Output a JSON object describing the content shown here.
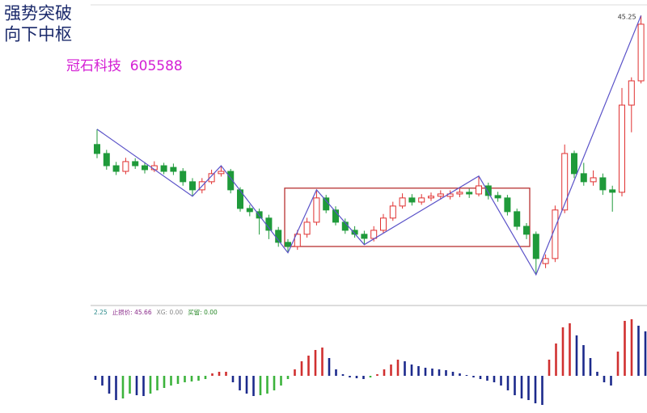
{
  "chart_data": [
    {
      "type": "candlestick",
      "annotations": [
        "强势突破",
        "向下中枢",
        "冠石科技  605588"
      ],
      "ylim": [
        28,
        46
      ],
      "up_color": "#e03030",
      "down_color": "#1f9a3a",
      "open": [
        36.8,
        36.21,
        35.41,
        35.04,
        35.68,
        35.41,
        35.15,
        35.41,
        35.3,
        35.04,
        34.36,
        33.83,
        34.36,
        34.89,
        35.04,
        33.83,
        32.61,
        32.4,
        31.98,
        31.18,
        30.39,
        30.12,
        30.92,
        31.71,
        33.3,
        32.51,
        31.71,
        31.18,
        30.92,
        30.65,
        31.18,
        31.98,
        32.77,
        33.3,
        33.03,
        33.3,
        33.41,
        33.4,
        33.56,
        33.67,
        33.56,
        34.09,
        33.46,
        33.3,
        32.4,
        31.44,
        30.92,
        29.0,
        29.33,
        32.51,
        36.21,
        34.89,
        34.36,
        34.62,
        33.83,
        33.67,
        39.38,
        40.97
      ],
      "high": [
        37.8,
        36.45,
        35.66,
        35.93,
        35.9,
        35.65,
        35.7,
        35.6,
        35.55,
        35.25,
        34.6,
        34.6,
        35.15,
        35.41,
        35.2,
        34.0,
        32.85,
        32.6,
        32.2,
        31.4,
        30.6,
        31.2,
        32.0,
        33.83,
        33.5,
        32.75,
        31.95,
        31.45,
        31.15,
        31.45,
        32.25,
        33.05,
        33.6,
        33.55,
        33.55,
        33.65,
        33.8,
        33.8,
        33.9,
        33.9,
        34.73,
        34.3,
        33.7,
        33.5,
        32.6,
        31.65,
        31.1,
        29.6,
        32.8,
        36.8,
        36.4,
        35.6,
        35.1,
        34.9,
        34.1,
        40.5,
        41.2,
        45.25
      ],
      "low": [
        35.9,
        35.15,
        34.8,
        34.85,
        35.2,
        34.9,
        35.0,
        34.85,
        34.8,
        34.1,
        33.41,
        33.6,
        34.2,
        34.7,
        33.6,
        32.4,
        32.1,
        30.9,
        30.6,
        30.1,
        29.71,
        29.9,
        30.7,
        31.5,
        32.3,
        31.5,
        30.95,
        30.7,
        30.24,
        30.45,
        31.0,
        31.8,
        32.6,
        32.8,
        32.85,
        33.1,
        33.2,
        33.2,
        33.35,
        33.3,
        33.4,
        33.2,
        33.05,
        32.15,
        31.2,
        30.6,
        28.27,
        28.7,
        29.1,
        32.3,
        34.6,
        34.1,
        34.1,
        33.5,
        32.4,
        33.4,
        37.6,
        40.8
      ],
      "close": [
        36.21,
        35.41,
        35.04,
        35.68,
        35.41,
        35.15,
        35.41,
        35.04,
        35.04,
        34.36,
        33.83,
        34.36,
        34.89,
        35.04,
        33.83,
        32.61,
        32.4,
        31.98,
        31.18,
        30.39,
        30.12,
        30.92,
        31.71,
        33.3,
        32.51,
        31.71,
        31.18,
        30.92,
        30.65,
        31.18,
        31.98,
        32.77,
        33.3,
        33.03,
        33.3,
        33.41,
        33.56,
        33.56,
        33.67,
        33.56,
        34.09,
        33.46,
        33.3,
        32.4,
        31.44,
        30.92,
        29.33,
        29.33,
        32.51,
        36.21,
        34.89,
        34.36,
        34.62,
        33.83,
        33.67,
        39.38,
        40.97,
        44.68
      ],
      "zigzag": {
        "color": "#5a52c8",
        "x": [
          0,
          10,
          13,
          20,
          23,
          28,
          40,
          46,
          57
        ],
        "values": [
          37.8,
          33.41,
          35.41,
          29.71,
          33.83,
          30.24,
          34.73,
          28.27,
          45.25
        ]
      },
      "pivot_zone": {
        "color": "#b83232",
        "start": 20,
        "end": 45,
        "low": 30.12,
        "high": 33.94
      }
    },
    {
      "type": "bar",
      "legend": [
        {
          "text": "2.25",
          "color": "#2a8a8a"
        },
        {
          "text": "止损价: 45.66",
          "color": "#8a2a8a"
        },
        {
          "text": "XG: 0.00",
          "color": "#888888"
        },
        {
          "text": "买留: 0.00",
          "color": "#2a8a2a"
        }
      ],
      "ylim": [
        -40,
        85
      ],
      "rise_color": "#d03030",
      "fall_color": "#1c2a8c",
      "recover_color": "#3cb33c",
      "values": [
        -5,
        -12,
        -22,
        -30,
        -28,
        -22,
        -24,
        -25,
        -22,
        -18,
        -15,
        -12,
        -10,
        -8,
        -7,
        -6,
        -4,
        3,
        5,
        5,
        -8,
        -18,
        -22,
        -25,
        -24,
        -22,
        -18,
        -12,
        -4,
        8,
        18,
        25,
        32,
        35,
        22,
        8,
        2,
        -2,
        -3,
        -4,
        -2,
        2,
        8,
        14,
        20,
        18,
        14,
        12,
        10,
        9,
        8,
        7,
        5,
        3,
        1,
        -2,
        -4,
        -6,
        -8,
        -12,
        -18,
        -24,
        -28,
        -30,
        -34,
        -36,
        20,
        40,
        60,
        65,
        50,
        38,
        22,
        5,
        -8,
        -12,
        30,
        68,
        70,
        62,
        55
      ]
    }
  ]
}
